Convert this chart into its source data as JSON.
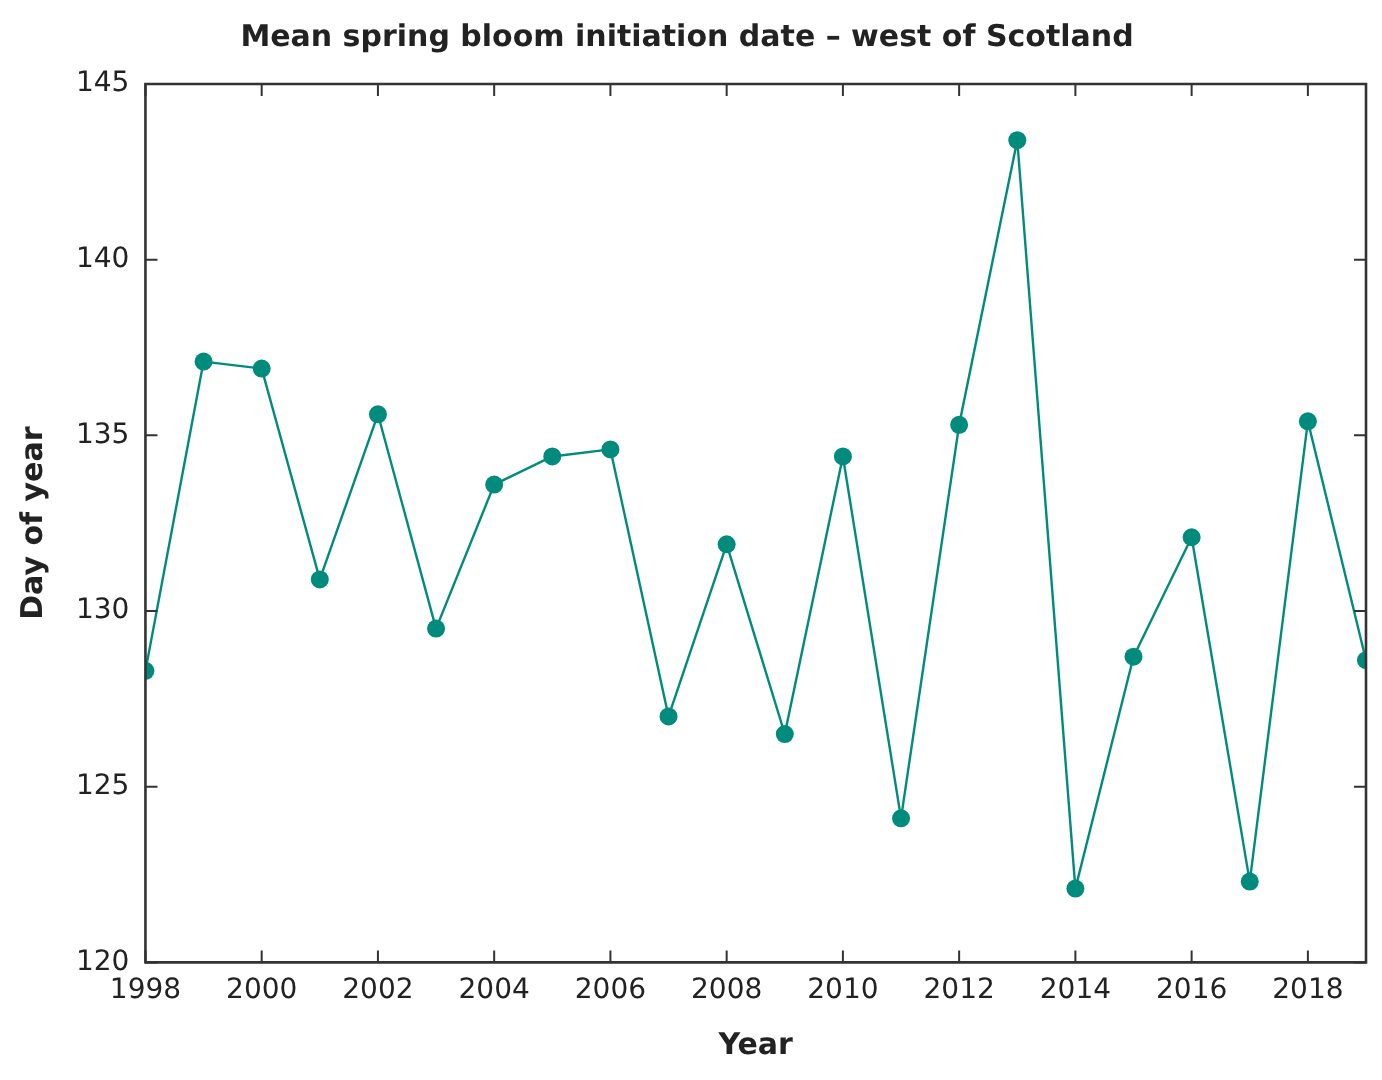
{
  "chart_data": {
    "type": "line",
    "title": "Mean spring bloom initiation date – west of Scotland",
    "xlabel": "Year",
    "ylabel": "Day of year",
    "x": [
      1998,
      1999,
      2000,
      2001,
      2002,
      2003,
      2004,
      2005,
      2006,
      2007,
      2008,
      2009,
      2010,
      2011,
      2012,
      2013,
      2014,
      2015,
      2016,
      2017,
      2018,
      2019
    ],
    "series": [
      {
        "color": "#008b7d",
        "values": [
          128.3,
          137.1,
          136.9,
          130.9,
          135.6,
          129.5,
          133.6,
          134.4,
          134.6,
          127.0,
          131.9,
          126.5,
          134.4,
          124.1,
          135.3,
          143.4,
          122.1,
          128.7,
          132.1,
          122.3,
          135.4,
          128.6
        ]
      }
    ],
    "xlim": [
      1998,
      2019
    ],
    "xticks": [
      1998,
      2000,
      2002,
      2004,
      2006,
      2008,
      2010,
      2012,
      2014,
      2016,
      2018
    ],
    "ylim": [
      120,
      145
    ],
    "yticks": [
      120,
      125,
      130,
      135,
      140,
      145
    ],
    "grid": false,
    "legend": false,
    "marker": "circle",
    "line_style": "solid"
  }
}
